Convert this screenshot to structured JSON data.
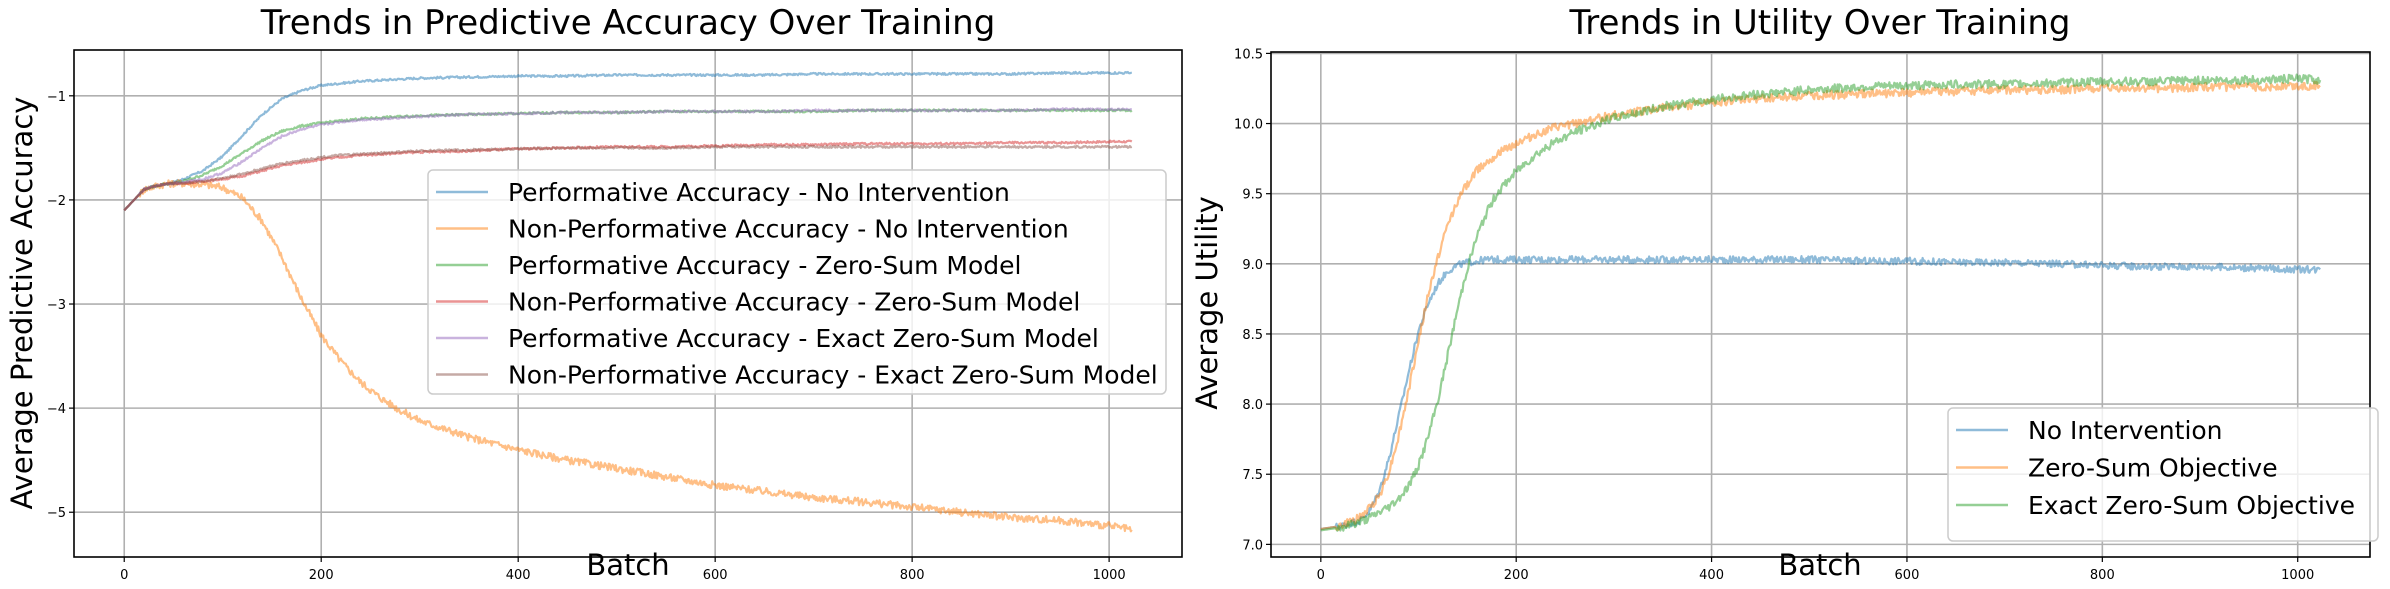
{
  "chart_data": [
    {
      "type": "line",
      "title": "Trends in Predictive Accuracy Over Training",
      "xlabel": "Batch",
      "ylabel": "Average Predictive Accuracy",
      "xlim": [
        -51,
        1074
      ],
      "ylim": [
        -5.43,
        -0.56
      ],
      "xticks": [
        0,
        200,
        400,
        600,
        800,
        1000
      ],
      "xtick_labels": [
        "0",
        "200",
        "400",
        "600",
        "800",
        "1000"
      ],
      "yticks": [
        -1,
        -2,
        -3,
        -4,
        -5
      ],
      "ytick_labels": [
        "−1",
        "−2",
        "−3",
        "−4",
        "−5"
      ],
      "grid": true,
      "legend_position": "center-right",
      "x": [
        0,
        10,
        20,
        30,
        40,
        50,
        60,
        80,
        100,
        120,
        140,
        160,
        180,
        200,
        220,
        240,
        260,
        280,
        300,
        350,
        400,
        450,
        500,
        550,
        600,
        650,
        700,
        750,
        800,
        850,
        900,
        950,
        1000,
        1023
      ],
      "series": [
        {
          "name": "Performative Accuracy - No Intervention",
          "color": "#1f77b4",
          "values": [
            -2.1,
            -2.0,
            -1.9,
            -1.87,
            -1.85,
            -1.83,
            -1.8,
            -1.72,
            -1.58,
            -1.38,
            -1.18,
            -1.03,
            -0.95,
            -0.9,
            -0.88,
            -0.86,
            -0.85,
            -0.84,
            -0.83,
            -0.82,
            -0.81,
            -0.81,
            -0.8,
            -0.8,
            -0.8,
            -0.8,
            -0.79,
            -0.79,
            -0.79,
            -0.79,
            -0.79,
            -0.78,
            -0.78,
            -0.78
          ]
        },
        {
          "name": "Non-Performative Accuracy - No Intervention",
          "color": "#ff7f0e",
          "values": [
            -2.1,
            -2.0,
            -1.9,
            -1.87,
            -1.85,
            -1.84,
            -1.84,
            -1.85,
            -1.88,
            -1.98,
            -2.2,
            -2.55,
            -2.95,
            -3.3,
            -3.55,
            -3.75,
            -3.9,
            -4.02,
            -4.12,
            -4.28,
            -4.4,
            -4.5,
            -4.58,
            -4.66,
            -4.74,
            -4.8,
            -4.86,
            -4.9,
            -4.95,
            -5.0,
            -5.05,
            -5.08,
            -5.13,
            -5.17
          ]
        },
        {
          "name": "Performative Accuracy - Zero-Sum Model",
          "color": "#2ca02c",
          "values": [
            -2.1,
            -2.0,
            -1.9,
            -1.87,
            -1.85,
            -1.84,
            -1.82,
            -1.76,
            -1.67,
            -1.55,
            -1.43,
            -1.34,
            -1.29,
            -1.26,
            -1.24,
            -1.22,
            -1.21,
            -1.2,
            -1.19,
            -1.18,
            -1.17,
            -1.16,
            -1.16,
            -1.15,
            -1.15,
            -1.15,
            -1.15,
            -1.14,
            -1.14,
            -1.14,
            -1.14,
            -1.14,
            -1.14,
            -1.14
          ]
        },
        {
          "name": "Non-Performative Accuracy - Zero-Sum Model",
          "color": "#d62728",
          "values": [
            -2.1,
            -2.0,
            -1.9,
            -1.87,
            -1.85,
            -1.84,
            -1.84,
            -1.82,
            -1.8,
            -1.77,
            -1.72,
            -1.67,
            -1.64,
            -1.61,
            -1.59,
            -1.57,
            -1.56,
            -1.55,
            -1.54,
            -1.53,
            -1.51,
            -1.5,
            -1.49,
            -1.49,
            -1.48,
            -1.47,
            -1.47,
            -1.46,
            -1.46,
            -1.46,
            -1.45,
            -1.45,
            -1.44,
            -1.44
          ]
        },
        {
          "name": "Performative Accuracy - Exact Zero-Sum Model",
          "color": "#9467bd",
          "values": [
            -2.1,
            -2.0,
            -1.9,
            -1.87,
            -1.85,
            -1.84,
            -1.83,
            -1.8,
            -1.74,
            -1.63,
            -1.5,
            -1.39,
            -1.32,
            -1.28,
            -1.25,
            -1.23,
            -1.22,
            -1.21,
            -1.2,
            -1.18,
            -1.17,
            -1.16,
            -1.16,
            -1.15,
            -1.15,
            -1.15,
            -1.14,
            -1.14,
            -1.14,
            -1.14,
            -1.14,
            -1.13,
            -1.13,
            -1.13
          ]
        },
        {
          "name": "Non-Performative Accuracy - Exact Zero-Sum Model",
          "color": "#8c564b",
          "values": [
            -2.1,
            -2.0,
            -1.9,
            -1.87,
            -1.85,
            -1.84,
            -1.84,
            -1.82,
            -1.79,
            -1.75,
            -1.7,
            -1.65,
            -1.62,
            -1.59,
            -1.57,
            -1.56,
            -1.55,
            -1.54,
            -1.53,
            -1.52,
            -1.51,
            -1.5,
            -1.5,
            -1.5,
            -1.49,
            -1.49,
            -1.49,
            -1.49,
            -1.49,
            -1.49,
            -1.49,
            -1.49,
            -1.49,
            -1.49
          ]
        }
      ]
    },
    {
      "type": "line",
      "title": "Trends in Utility Over Training",
      "xlabel": "Batch",
      "ylabel": "Average Utility",
      "xlim": [
        -51,
        1074
      ],
      "ylim": [
        6.91,
        10.51
      ],
      "xticks": [
        0,
        200,
        400,
        600,
        800,
        1000
      ],
      "xtick_labels": [
        "0",
        "200",
        "400",
        "600",
        "800",
        "1000"
      ],
      "yticks": [
        7.0,
        7.5,
        8.0,
        8.5,
        9.0,
        9.5,
        10.0,
        10.5
      ],
      "ytick_labels": [
        "7.0",
        "7.5",
        "8.0",
        "8.5",
        "9.0",
        "9.5",
        "10.0",
        "10.5"
      ],
      "grid": true,
      "legend_position": "lower-right",
      "x": [
        0,
        20,
        40,
        50,
        60,
        70,
        80,
        90,
        100,
        110,
        120,
        130,
        140,
        150,
        160,
        170,
        180,
        200,
        220,
        240,
        260,
        280,
        300,
        350,
        400,
        450,
        500,
        550,
        600,
        650,
        700,
        750,
        800,
        850,
        900,
        950,
        1000,
        1023
      ],
      "series": [
        {
          "name": "No Intervention",
          "color": "#1f77b4",
          "values": [
            7.11,
            7.13,
            7.17,
            7.24,
            7.38,
            7.62,
            7.92,
            8.23,
            8.52,
            8.72,
            8.86,
            8.95,
            8.99,
            9.01,
            9.02,
            9.03,
            9.03,
            9.03,
            9.03,
            9.03,
            9.03,
            9.03,
            9.03,
            9.03,
            9.03,
            9.03,
            9.03,
            9.02,
            9.02,
            9.01,
            9.01,
            9.0,
            8.99,
            8.98,
            8.98,
            8.97,
            8.96,
            8.96
          ]
        },
        {
          "name": "Zero-Sum Objective",
          "color": "#ff7f0e",
          "values": [
            7.11,
            7.13,
            7.19,
            7.26,
            7.35,
            7.52,
            7.78,
            8.1,
            8.45,
            8.78,
            9.05,
            9.28,
            9.45,
            9.57,
            9.67,
            9.73,
            9.78,
            9.86,
            9.92,
            9.97,
            10.0,
            10.03,
            10.06,
            10.11,
            10.15,
            10.18,
            10.2,
            10.21,
            10.22,
            10.23,
            10.24,
            10.24,
            10.25,
            10.25,
            10.26,
            10.26,
            10.27,
            10.27
          ]
        },
        {
          "name": "Exact Zero-Sum Objective",
          "color": "#2ca02c",
          "values": [
            7.1,
            7.12,
            7.16,
            7.19,
            7.23,
            7.27,
            7.33,
            7.42,
            7.56,
            7.77,
            8.03,
            8.35,
            8.68,
            8.97,
            9.2,
            9.37,
            9.5,
            9.66,
            9.78,
            9.87,
            9.94,
            9.99,
            10.04,
            10.12,
            10.17,
            10.21,
            10.24,
            10.26,
            10.27,
            10.28,
            10.28,
            10.29,
            10.3,
            10.3,
            10.31,
            10.31,
            10.32,
            10.31
          ]
        }
      ]
    }
  ]
}
